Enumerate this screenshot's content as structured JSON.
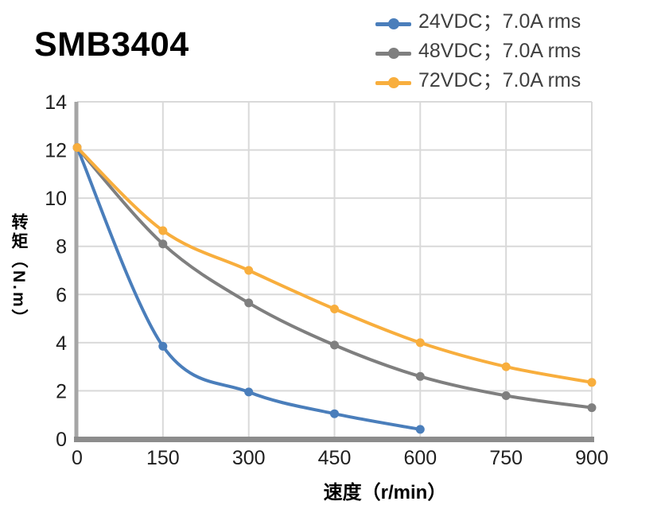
{
  "page": {
    "background": "#ffffff"
  },
  "chart_data": {
    "type": "line",
    "title": "SMB3404",
    "xlabel": "速度（r/min）",
    "ylabel": "转矩（N.m）",
    "xlim": [
      0,
      900
    ],
    "ylim": [
      0,
      14
    ],
    "xticks": [
      0,
      150,
      300,
      450,
      600,
      750,
      900
    ],
    "yticks": [
      0,
      2,
      4,
      6,
      8,
      10,
      12,
      14
    ],
    "grid": true,
    "legend_position": "top-right",
    "series": [
      {
        "name": "24VDC；7.0A rms",
        "color": "#4A7EBB",
        "points": [
          [
            0,
            12.1
          ],
          [
            150,
            3.85
          ],
          [
            300,
            1.95
          ],
          [
            450,
            1.05
          ],
          [
            600,
            0.4
          ]
        ]
      },
      {
        "name": "48VDC；7.0A rms",
        "color": "#7F7F7F",
        "points": [
          [
            0,
            12.1
          ],
          [
            150,
            8.1
          ],
          [
            300,
            5.65
          ],
          [
            450,
            3.9
          ],
          [
            600,
            2.6
          ],
          [
            750,
            1.8
          ],
          [
            900,
            1.3
          ]
        ]
      },
      {
        "name": "72VDC；7.0A rms",
        "color": "#F8AE3D",
        "points": [
          [
            0,
            12.1
          ],
          [
            150,
            8.65
          ],
          [
            300,
            7.0
          ],
          [
            450,
            5.4
          ],
          [
            600,
            4.0
          ],
          [
            750,
            3.0
          ],
          [
            900,
            2.35
          ]
        ]
      }
    ],
    "colors": {
      "grid": "#D9D9D9",
      "axis_y": "#A6A6A6",
      "axis_x": "#8C8C8C",
      "tick_label": "#1F1F1F",
      "legend_text": "#3F3F3F",
      "title_text": "#000000"
    }
  }
}
